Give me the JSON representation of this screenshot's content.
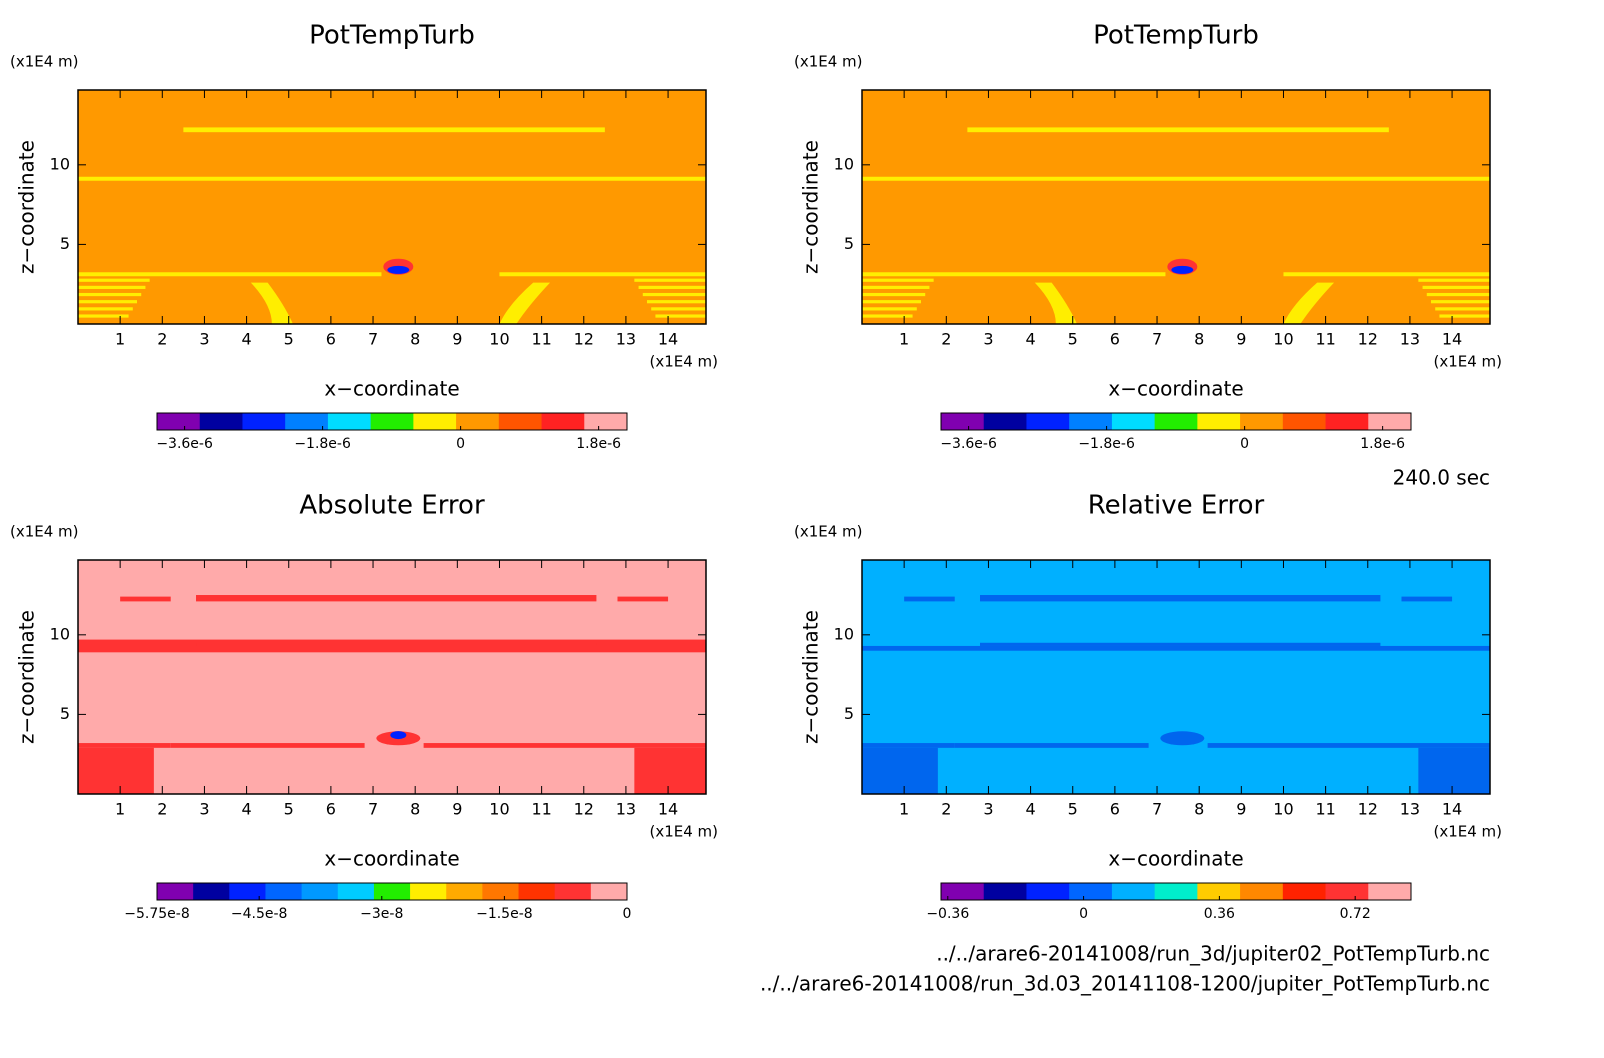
{
  "chart_data": [
    {
      "type": "contour",
      "title": "PotTempTurb",
      "xlabel": "x−coordinate",
      "ylabel": "z−coordinate",
      "xunit": "(x1E4 m)",
      "yunit": "(x1E4 m)",
      "xlim": [
        0,
        14.9
      ],
      "ylim": [
        0,
        14.7
      ],
      "xticks": [
        1,
        2,
        3,
        4,
        5,
        6,
        7,
        8,
        9,
        10,
        11,
        12,
        13,
        14
      ],
      "yticks": [
        5,
        10
      ],
      "colorbar": {
        "lim": [
          -3.96e-06,
          2.17e-06
        ],
        "colors": [
          "#8000b0",
          "#0000a0",
          "#0022ff",
          "#0080ff",
          "#00ddff",
          "#22ee00",
          "#ffee00",
          "#ff9900",
          "#ff5500",
          "#ff2222",
          "#ffaaaa"
        ],
        "ticks": [
          {
            "value": -3.6e-06,
            "label": "−3.6e-6"
          },
          {
            "value": -1.8e-06,
            "label": "−1.8e-6"
          },
          0,
          {
            "value": 1.8e-06,
            "label": "1.8e-6"
          }
        ]
      }
    },
    {
      "type": "contour",
      "title": "PotTempTurb",
      "xlabel": "x−coordinate",
      "ylabel": "z−coordinate",
      "xunit": "(x1E4 m)",
      "yunit": "(x1E4 m)",
      "xlim": [
        0,
        14.9
      ],
      "ylim": [
        0,
        14.7
      ],
      "xticks": [
        1,
        2,
        3,
        4,
        5,
        6,
        7,
        8,
        9,
        10,
        11,
        12,
        13,
        14
      ],
      "yticks": [
        5,
        10
      ],
      "colorbar": {
        "lim": [
          -3.96e-06,
          2.17e-06
        ],
        "colors": [
          "#8000b0",
          "#0000a0",
          "#0022ff",
          "#0080ff",
          "#00ddff",
          "#22ee00",
          "#ffee00",
          "#ff9900",
          "#ff5500",
          "#ff2222",
          "#ffaaaa"
        ],
        "ticks": [
          {
            "value": -3.6e-06,
            "label": "−3.6e-6"
          },
          {
            "value": -1.8e-06,
            "label": "−1.8e-6"
          },
          0,
          {
            "value": 1.8e-06,
            "label": "1.8e-6"
          }
        ]
      }
    },
    {
      "type": "contour",
      "title": "Absolute Error",
      "xlabel": "x−coordinate",
      "ylabel": "z−coordinate",
      "xunit": "(x1E4 m)",
      "yunit": "(x1E4 m)",
      "xlim": [
        0,
        14.9
      ],
      "ylim": [
        0,
        14.7
      ],
      "xticks": [
        1,
        2,
        3,
        4,
        5,
        6,
        7,
        8,
        9,
        10,
        11,
        12,
        13,
        14
      ],
      "yticks": [
        5,
        10
      ],
      "colorbar": {
        "lim": [
          -5.75e-08,
          0
        ],
        "colors": [
          "#8000b0",
          "#0000a0",
          "#0022ff",
          "#0066ff",
          "#0099ff",
          "#00ccff",
          "#22ee00",
          "#ffee00",
          "#ffaa00",
          "#ff7700",
          "#ff3300",
          "#ff3333",
          "#ffaaaa"
        ],
        "ticks": [
          {
            "value": -5.75e-08,
            "label": "−5.75e-8"
          },
          {
            "value": -4.5e-08,
            "label": "−4.5e-8"
          },
          {
            "value": -3e-08,
            "label": "−3e-8"
          },
          {
            "value": -1.5e-08,
            "label": "−1.5e-8"
          },
          0
        ]
      }
    },
    {
      "type": "contour",
      "title": "Relative Error",
      "xlabel": "x−coordinate",
      "ylabel": "z−coordinate",
      "xunit": "(x1E4 m)",
      "yunit": "(x1E4 m)",
      "xlim": [
        0,
        14.9
      ],
      "ylim": [
        0,
        14.7
      ],
      "xticks": [
        1,
        2,
        3,
        4,
        5,
        6,
        7,
        8,
        9,
        10,
        11,
        12,
        13,
        14
      ],
      "yticks": [
        5,
        10
      ],
      "colorbar": {
        "lim": [
          -0.378,
          0.868
        ],
        "colors": [
          "#8000b0",
          "#0000a0",
          "#0022ff",
          "#0066ff",
          "#00b0ff",
          "#00eecc",
          "#ffcc00",
          "#ff8800",
          "#ff2200",
          "#ff3333",
          "#ffaaaa"
        ],
        "ticks": [
          {
            "value": -0.36,
            "label": "−0.36"
          },
          0,
          0.36,
          0.72
        ]
      }
    }
  ],
  "footer": {
    "time": "240.0 sec",
    "files": [
      "../../arare6-20141008/run_3d/jupiter02_PotTempTurb.nc",
      "../../arare6-20141008/run_3d.03_20141108-1200/jupiter_PotTempTurb.nc"
    ]
  }
}
